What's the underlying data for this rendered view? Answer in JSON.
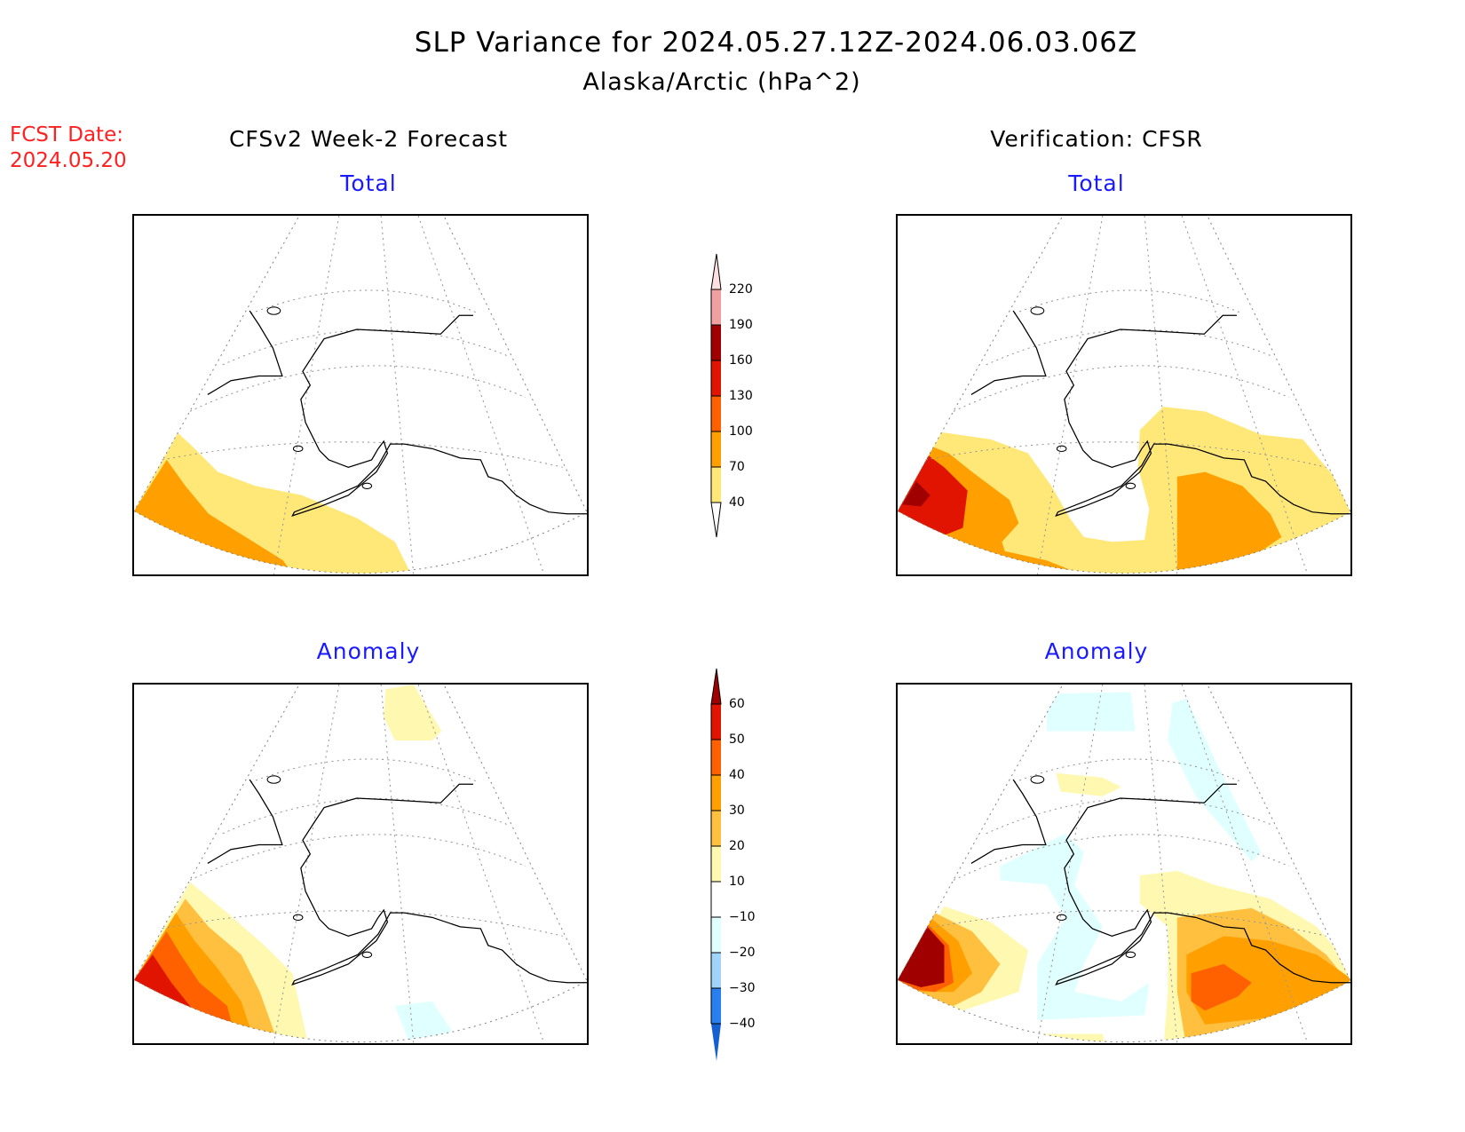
{
  "header": {
    "title": "SLP Variance for 2024.05.27.12Z-2024.06.03.06Z",
    "subtitle": "Alaska/Arctic (hPa^2)",
    "fcst_label": "FCST Date:",
    "fcst_date": "2024.05.20",
    "left_column": "CFSv2 Week-2 Forecast",
    "right_column": "Verification: CFSR"
  },
  "panels": {
    "forecast_total": "Total",
    "verification_total": "Total",
    "forecast_anomaly": "Anomaly",
    "verification_anomaly": "Anomaly"
  },
  "chart_data": {
    "type": "heatmap",
    "title": "SLP Variance for 2024.05.27.12Z-2024.06.03.06Z",
    "subtitle": "Alaska/Arctic (hPa^2)",
    "region": "Alaska/Arctic",
    "total_colorbar": {
      "levels": [
        "40",
        "70",
        "100",
        "130",
        "160",
        "190",
        "220"
      ],
      "colors": [
        "#ffe878",
        "#ffa000",
        "#ff6000",
        "#e01400",
        "#a00000",
        "#f0a0a0",
        "#ffe0e0"
      ]
    },
    "anomaly_colorbar": {
      "levels": [
        "60",
        "50",
        "40",
        "30",
        "20",
        "10",
        "-10",
        "-20",
        "-30",
        "-40"
      ],
      "colors": [
        "#a00000",
        "#e01400",
        "#ff6000",
        "#ffa000",
        "#ffc040",
        "#fff8b0",
        "#ffffff",
        "#e0ffff",
        "#a0d4fa",
        "#2880f0",
        "#1460d0"
      ]
    }
  }
}
